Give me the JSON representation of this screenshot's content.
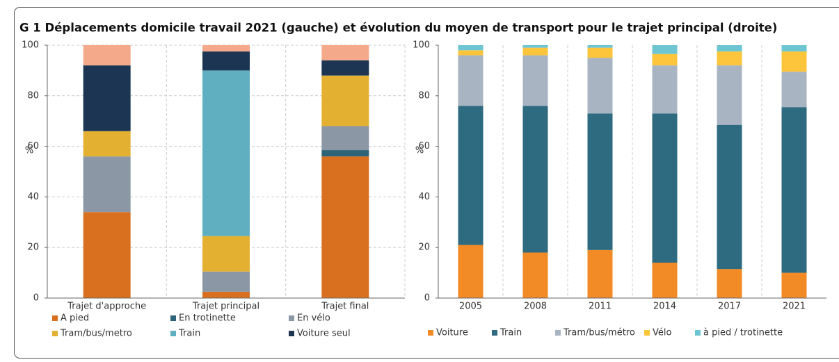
{
  "title": "G 1 Déplacements domicile travail 2021 (gauche) et évolution du moyen de transport pour le trajet principal (droite)",
  "chart_data": [
    {
      "type": "stacked_bar",
      "ylabel": "%",
      "ylim": [
        0,
        100
      ],
      "yticks": [
        0,
        20,
        40,
        60,
        80,
        100
      ],
      "grid": true,
      "categories": [
        "Trajet d'approche",
        "Trajet principal",
        "Trajet final"
      ],
      "series": [
        {
          "name": "A pied",
          "color": "#d97020",
          "values": [
            34,
            2.5,
            56
          ]
        },
        {
          "name": "En trotinette",
          "color": "#2e6478",
          "values": [
            0,
            0,
            2.5
          ]
        },
        {
          "name": "En vélo",
          "color": "#8c97a6",
          "values": [
            22,
            8,
            9.5
          ]
        },
        {
          "name": "Tram/bus/metro",
          "color": "#e3b032",
          "values": [
            10,
            14,
            20
          ]
        },
        {
          "name": "Train",
          "color": "#5fafc0",
          "values": [
            0,
            65.5,
            0
          ]
        },
        {
          "name": "Voiture seul",
          "color": "#1b3553",
          "values": [
            26,
            7.5,
            6
          ]
        },
        {
          "name": null,
          "color": "#f4a98a",
          "values": [
            8,
            2.5,
            6
          ]
        }
      ]
    },
    {
      "type": "stacked_bar",
      "ylabel": "%",
      "ylim": [
        0,
        100
      ],
      "yticks": [
        0,
        20,
        40,
        60,
        80,
        100
      ],
      "grid": false,
      "categories": [
        "2005",
        "2008",
        "2011",
        "2014",
        "2017",
        "2021"
      ],
      "series": [
        {
          "name": "Voiture",
          "color": "#f28a25",
          "values": [
            21,
            18,
            19,
            14,
            11.5,
            10
          ]
        },
        {
          "name": "Train",
          "color": "#2e6a80",
          "values": [
            55,
            58,
            54,
            59,
            57,
            65.5
          ]
        },
        {
          "name": "Tram/bus/métro",
          "color": "#a9b4c2",
          "values": [
            20,
            20,
            22,
            19,
            23.5,
            14
          ]
        },
        {
          "name": "Vélo",
          "color": "#fcc53c",
          "values": [
            2,
            3,
            4,
            4.5,
            5.5,
            8
          ]
        },
        {
          "name": "à pied / trotinette",
          "color": "#6ec5d2",
          "values": [
            2,
            1,
            1,
            3.5,
            2.5,
            2.5
          ]
        }
      ]
    }
  ]
}
